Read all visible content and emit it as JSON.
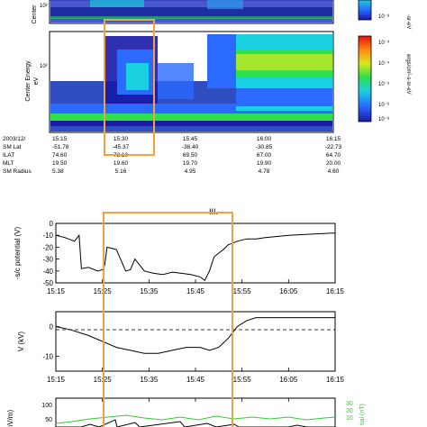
{
  "top_panel": {
    "row_labels": [
      "2003/12/",
      "SM Lat",
      "ILAT",
      "MLT",
      "SM Radius"
    ],
    "time_ticks": [
      "15:15",
      "15:30",
      "15:45",
      "16:00",
      "16:15"
    ],
    "rows": [
      [
        "-51.78",
        "-45.37",
        "-38.40",
        "-30.85",
        "-22.73"
      ],
      [
        "74.60",
        "72.10",
        "69.50",
        "67.00",
        "64.70"
      ],
      [
        "19.50",
        "19.60",
        "19.70",
        "19.90",
        "20.00"
      ],
      [
        "5.38",
        "5.16",
        "4.95",
        "4.78",
        "4.60"
      ]
    ],
    "spectrogram_ylabel": "Center Energy\neV",
    "spectrogram_upper_ylabel": "Center",
    "colorbar_upper_label": "-sr-eV",
    "colorbar_upper_tick": "10⁻⁸",
    "colorbar_label": "ergs/cm²-s-sr-eV",
    "colorbar_ticks": [
      "10⁻³",
      "10⁻⁴",
      "10⁻⁵",
      "10⁻⁶",
      "10⁻⁸"
    ]
  },
  "section_label": "III.",
  "chart_data": [
    {
      "type": "line",
      "ylabel": "-s/c potential (V)",
      "ylim": [
        -50,
        0
      ],
      "yticks": [
        "0",
        "-10",
        "-20",
        "-30",
        "-40",
        "-50"
      ],
      "x_tick_labels": [
        "15:15",
        "15:25",
        "15:35",
        "15:45",
        "15:55",
        "16:05",
        "16:15"
      ],
      "x": [
        "15:15",
        "15:17",
        "15:19",
        "15:20",
        "15:20.5",
        "15:22",
        "15:24",
        "15:25",
        "15:25.5",
        "15:26",
        "15:28",
        "15:30",
        "15:31",
        "15:32",
        "15:34",
        "15:36",
        "15:38",
        "15:40",
        "15:42",
        "15:44",
        "15:46",
        "15:47",
        "15:48",
        "15:49",
        "15:50",
        "15:51",
        "15:52",
        "15:54",
        "15:56",
        "15:58",
        "16:00",
        "16:05",
        "16:10",
        "16:15"
      ],
      "y": [
        -10,
        -12,
        -15,
        -10,
        -38,
        -37,
        -40,
        -39,
        -35,
        -20,
        -22,
        -40,
        -39,
        -30,
        -40,
        -42,
        -43,
        -41,
        -42,
        -43,
        -45,
        -48,
        -40,
        -28,
        -25,
        -22,
        -18,
        -15,
        -13,
        -13,
        -12,
        -10,
        -9,
        -8
      ]
    },
    {
      "type": "line",
      "ylabel": "V (kV)",
      "ylim": [
        -15,
        5
      ],
      "yticks": [
        "0",
        "-10"
      ],
      "x_tick_labels": [
        "15:15",
        "15:25",
        "15:35",
        "15:45",
        "15:55",
        "16:05",
        "16:15"
      ],
      "x": [
        "15:15",
        "15:18",
        "15:22",
        "15:25",
        "15:28",
        "15:31",
        "15:34",
        "15:37",
        "15:40",
        "15:43",
        "15:46",
        "15:48",
        "15:50",
        "15:52",
        "15:54",
        "15:56",
        "15:58",
        "16:00",
        "16:05",
        "16:10",
        "16:15"
      ],
      "y": [
        0,
        -1,
        -3,
        -5,
        -7,
        -8,
        -9,
        -9,
        -8,
        -7,
        -7,
        -8,
        -7,
        -4,
        0,
        2,
        3,
        3,
        3,
        3,
        3
      ]
    },
    {
      "type": "line",
      "ylabel": "(mV/m)",
      "ylim": [
        0,
        100
      ],
      "yticks": [
        "100",
        "50",
        "0"
      ],
      "right_ylabel": "tial (nT)",
      "right_ticks": [
        "30",
        "20",
        "10"
      ],
      "series_colors": [
        "#000000",
        "#33cc33"
      ]
    }
  ],
  "highlight_color": "#f5a040",
  "series_color_green": "#33cc33"
}
